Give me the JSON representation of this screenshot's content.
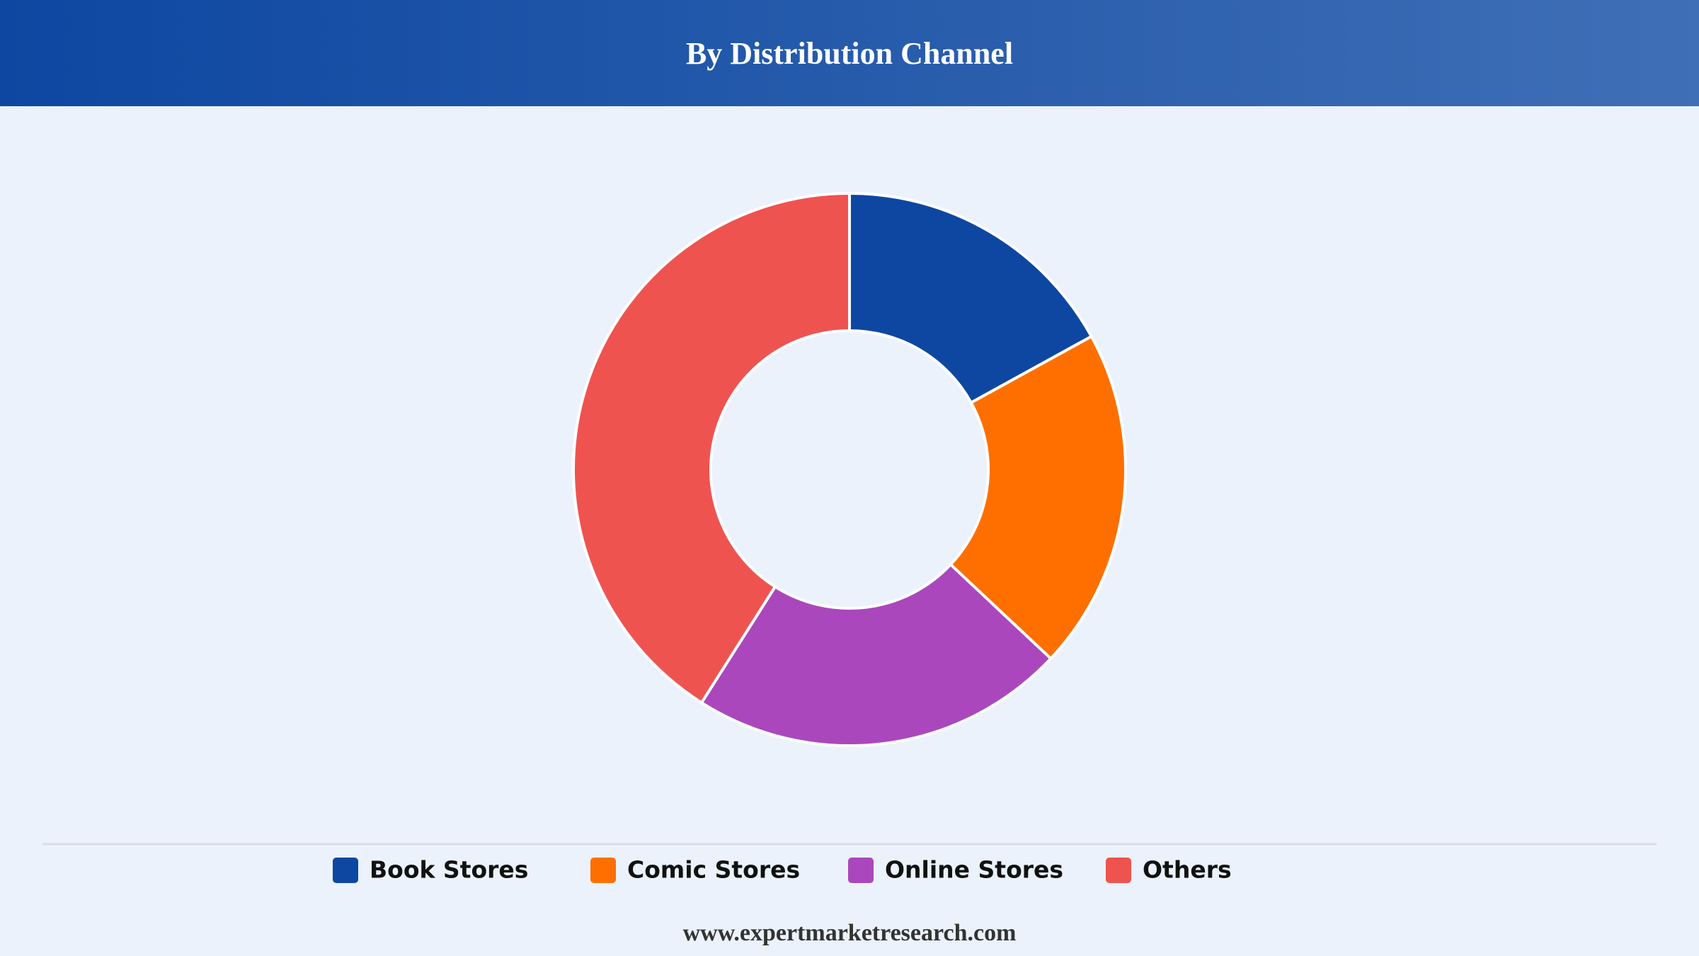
{
  "chart_data": {
    "type": "pie",
    "title": "By Distribution Channel",
    "categories": [
      "Book Stores",
      "Comic Stores",
      "Online Stores",
      "Others"
    ],
    "values": [
      17,
      20,
      22,
      41
    ],
    "colors": [
      "#0d47a1",
      "#ff6f00",
      "#ab47bc",
      "#ef5350"
    ],
    "legend": "bottom"
  },
  "footer": "www.expertmarketresearch.com"
}
